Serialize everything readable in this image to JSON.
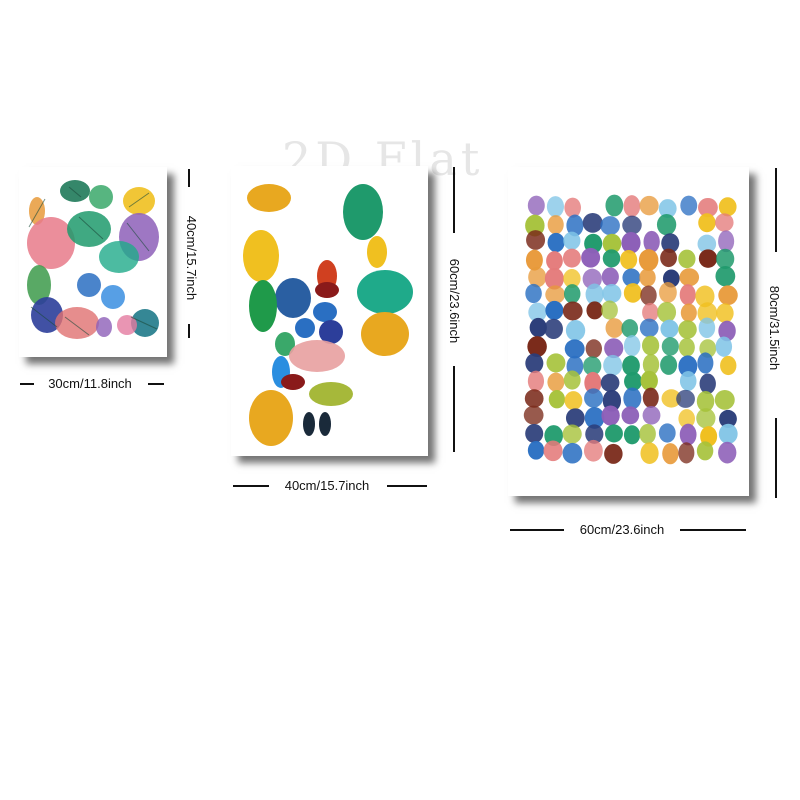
{
  "watermark": "2D Flat",
  "posters": [
    {
      "id": "small",
      "width_label": "30cm/11.8inch",
      "height_label": "40cm/15.7inch",
      "artwork": "watercolor-leaves"
    },
    {
      "id": "medium",
      "width_label": "40cm/15.7inch",
      "height_label": "60cm/23.6inch",
      "artwork": "watercolor-stones"
    },
    {
      "id": "large",
      "width_label": "60cm/23.6inch",
      "height_label": "80cm/31.5inch",
      "artwork": "watercolor-dots"
    }
  ],
  "palette": [
    "#2a6fc2",
    "#1f9a6c",
    "#f0c020",
    "#e89a3a",
    "#e47a7a",
    "#8d5fb8",
    "#7fc4e6",
    "#7a2a1a",
    "#2c3e7a",
    "#a6c23a"
  ]
}
